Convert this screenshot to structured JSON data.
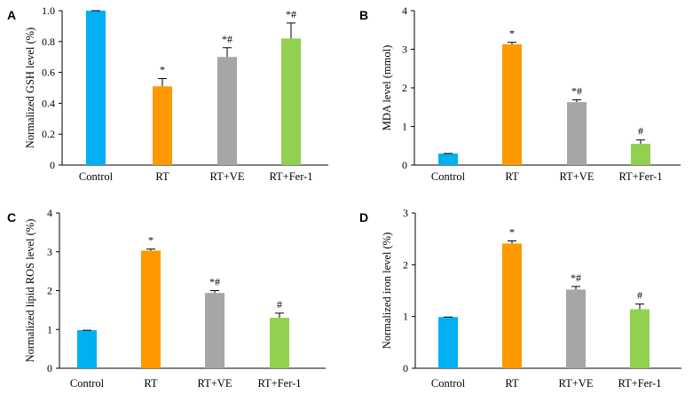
{
  "colors": {
    "Control": "#00b0f0",
    "RT": "#ff9900",
    "RT+VE": "#a6a6a6",
    "RT+Fer-1": "#92d050"
  },
  "chart_data": [
    {
      "panel": "A",
      "type": "bar",
      "ylabel": "Normalized GSH level (%)",
      "categories": [
        "Control",
        "RT",
        "RT+VE",
        "RT+Fer-1"
      ],
      "values": [
        1.0,
        0.51,
        0.7,
        0.82
      ],
      "errors": [
        0.0,
        0.05,
        0.06,
        0.1
      ],
      "significance": [
        "",
        "*",
        "*#",
        "*#"
      ],
      "ylim": [
        0,
        1.0
      ],
      "yticks": [
        "0",
        "0.2",
        "0.4",
        "0.6",
        "0.8",
        "1.0"
      ],
      "grid": false
    },
    {
      "panel": "B",
      "type": "bar",
      "ylabel": "MDA level (mmol)",
      "categories": [
        "Control",
        "RT",
        "RT+VE",
        "RT+Fer-1"
      ],
      "values": [
        0.3,
        3.13,
        1.63,
        0.55
      ],
      "errors": [
        0.0,
        0.05,
        0.06,
        0.1
      ],
      "significance": [
        "",
        "*",
        "*#",
        "#"
      ],
      "ylim": [
        0,
        4
      ],
      "yticks": [
        "0",
        "1",
        "2",
        "3",
        "4"
      ],
      "grid": false
    },
    {
      "panel": "C",
      "type": "bar",
      "ylabel": "Normalized lipid ROS level (%)",
      "categories": [
        "Control",
        "RT",
        "RT+VE",
        "RT+Fer-1"
      ],
      "values": [
        0.98,
        3.03,
        1.94,
        1.3
      ],
      "errors": [
        0.0,
        0.04,
        0.06,
        0.12
      ],
      "significance": [
        "",
        "*",
        "*#",
        "#"
      ],
      "ylim": [
        0,
        4
      ],
      "yticks": [
        "0",
        "1",
        "2",
        "3",
        "4"
      ],
      "grid": false
    },
    {
      "panel": "D",
      "type": "bar",
      "ylabel": "Normalized iron level (%)",
      "categories": [
        "Control",
        "RT",
        "RT+VE",
        "RT+Fer-1"
      ],
      "values": [
        0.99,
        2.41,
        1.52,
        1.14
      ],
      "errors": [
        0.0,
        0.05,
        0.06,
        0.1
      ],
      "significance": [
        "",
        "*",
        "*#",
        "#"
      ],
      "ylim": [
        0,
        3
      ],
      "yticks": [
        "0",
        "1",
        "2",
        "3"
      ],
      "grid": false
    }
  ]
}
